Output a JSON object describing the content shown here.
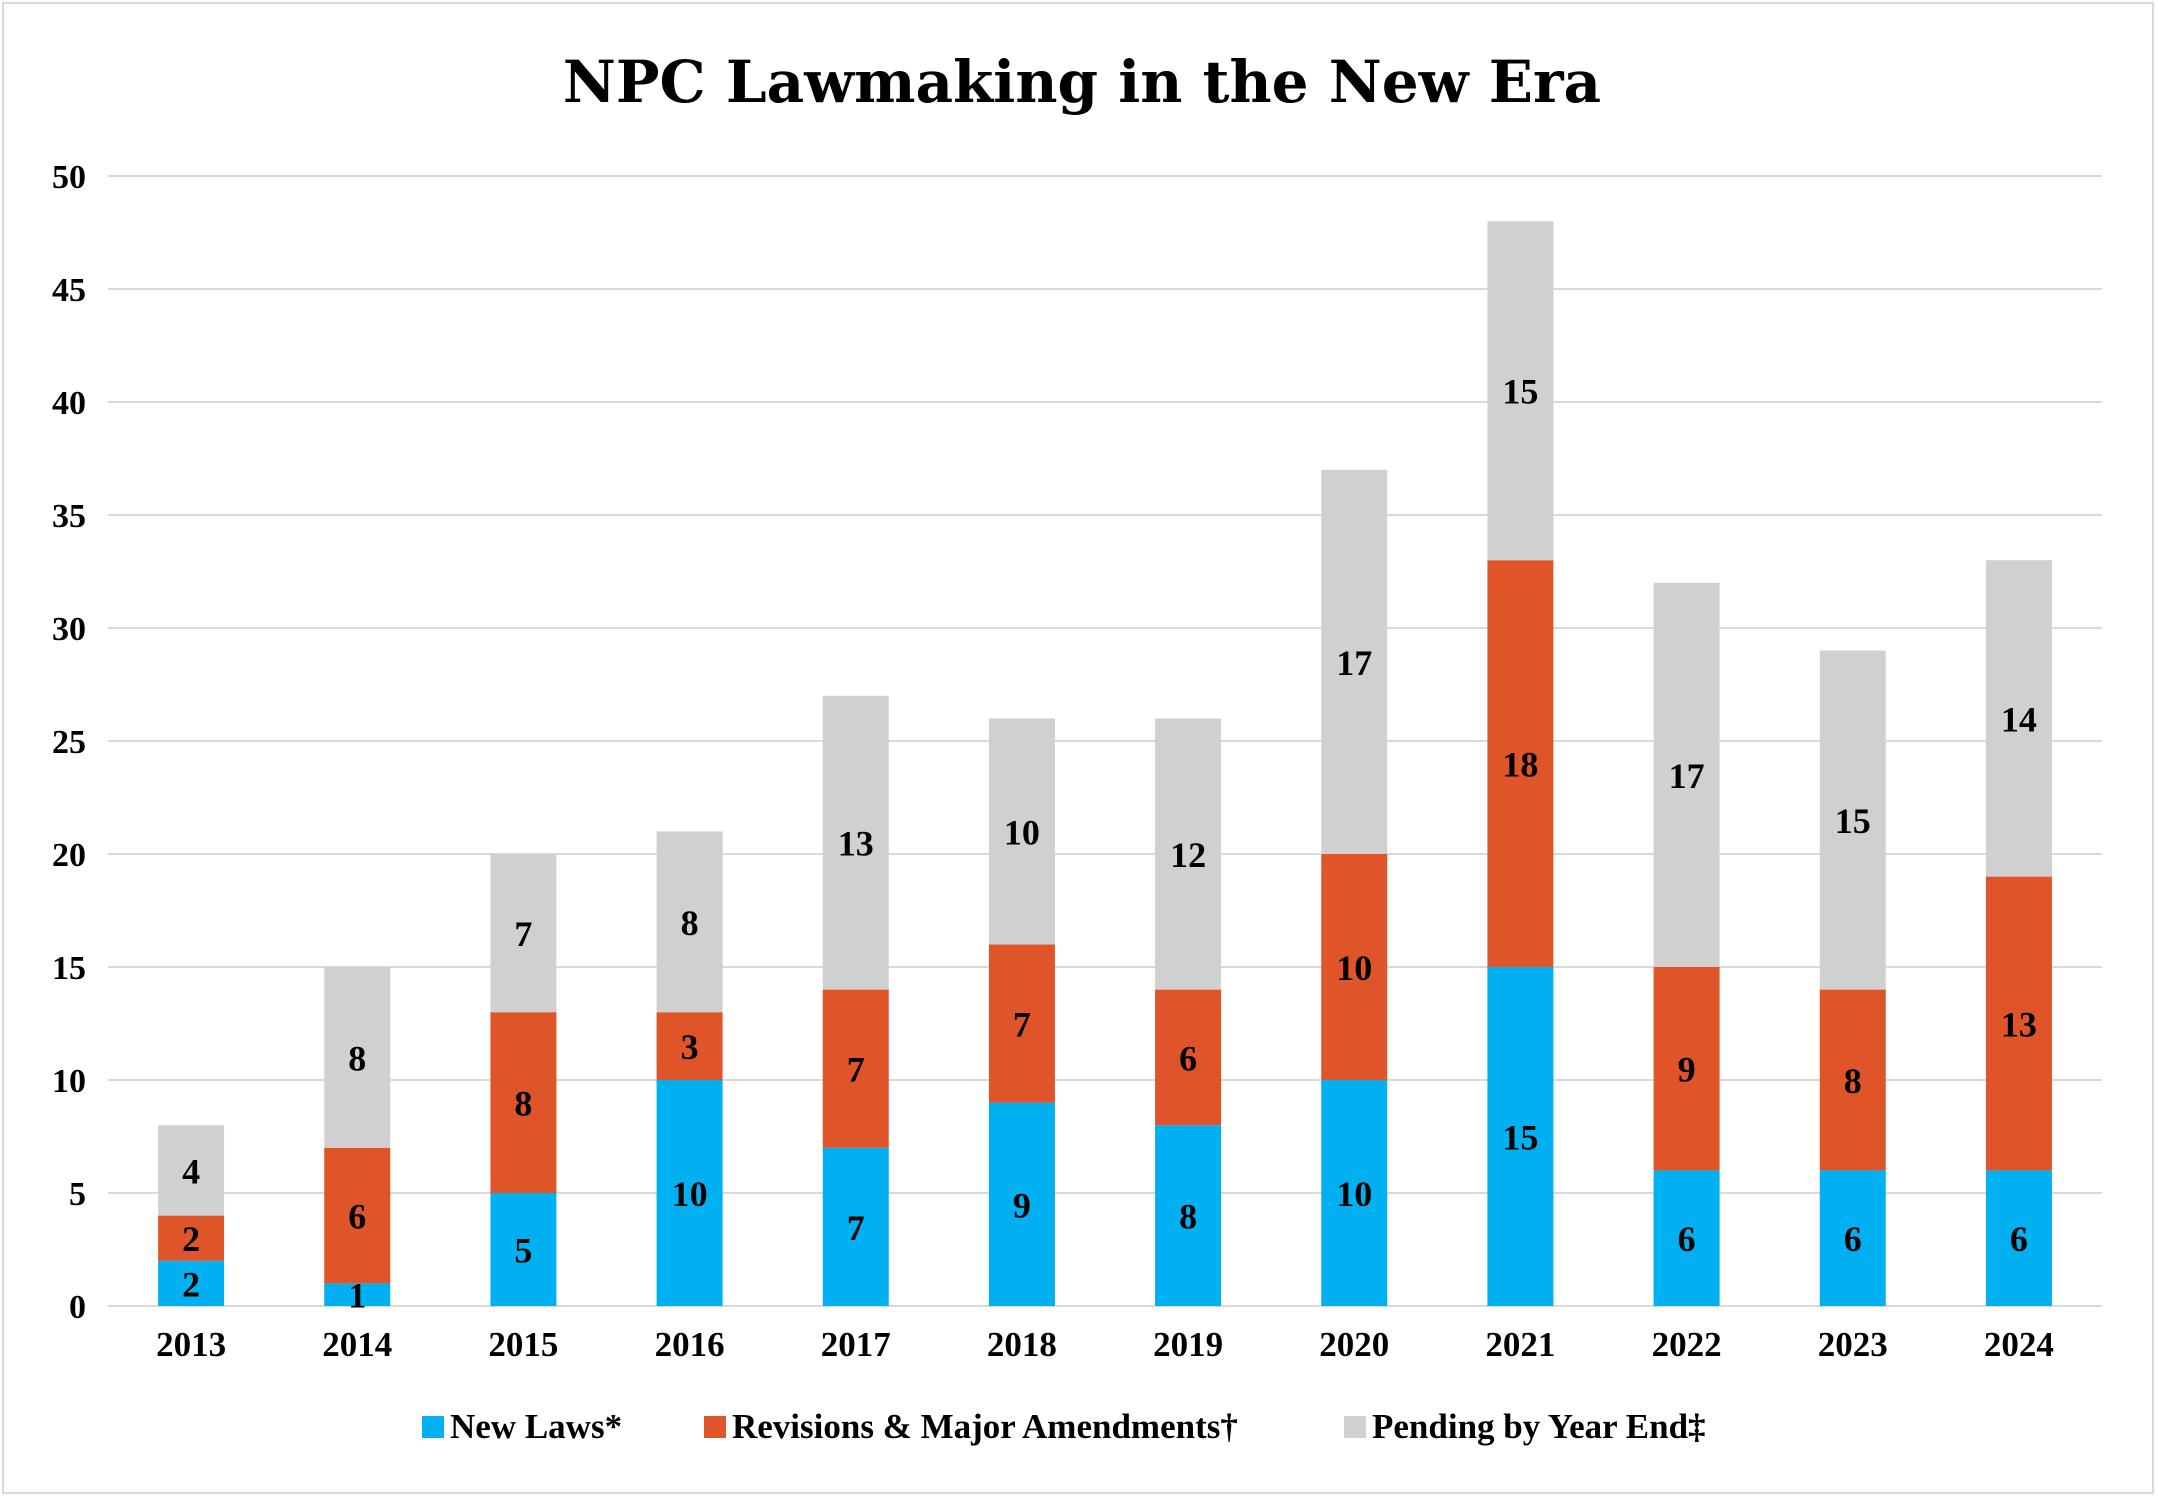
{
  "chart_data": {
    "type": "bar",
    "stacked": true,
    "title": "NPC Lawmaking in the New Era",
    "xlabel": "",
    "ylabel": "",
    "categories": [
      "2013",
      "2014",
      "2015",
      "2016",
      "2017",
      "2018",
      "2019",
      "2020",
      "2021",
      "2022",
      "2023",
      "2024"
    ],
    "ylim": [
      0,
      50
    ],
    "yticks": [
      0,
      5,
      10,
      15,
      20,
      25,
      30,
      35,
      40,
      45,
      50
    ],
    "grid": true,
    "legend_position": "bottom",
    "data_labels": true,
    "series": [
      {
        "name": "New Laws*",
        "color": "#00b0f0",
        "values": [
          2,
          1,
          5,
          10,
          7,
          9,
          8,
          10,
          15,
          6,
          6,
          6
        ]
      },
      {
        "name": "Revisions & Major Amendments†",
        "color": "#e0542a",
        "values": [
          2,
          6,
          8,
          3,
          7,
          7,
          6,
          10,
          18,
          9,
          8,
          13
        ]
      },
      {
        "name": "Pending by Year End‡",
        "color": "#d0d0d0",
        "values": [
          4,
          8,
          7,
          8,
          13,
          10,
          12,
          17,
          15,
          17,
          15,
          14
        ]
      }
    ]
  }
}
